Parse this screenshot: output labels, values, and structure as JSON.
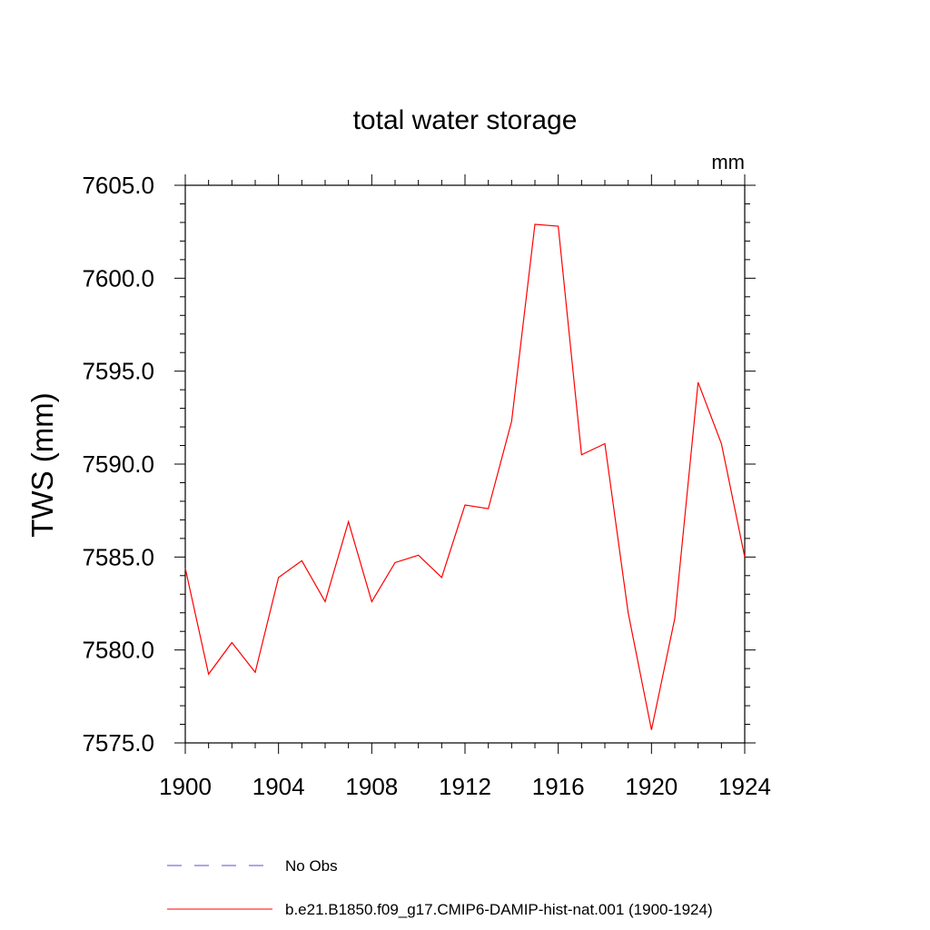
{
  "chart_data": {
    "type": "line",
    "title": "total water storage",
    "units_label": "mm",
    "ylabel": "TWS  (mm)",
    "xlabel": "",
    "xlim": [
      1900,
      1924
    ],
    "ylim": [
      7575.0,
      7605.0
    ],
    "x_ticks": [
      1900,
      1904,
      1908,
      1912,
      1916,
      1920,
      1924
    ],
    "x_tick_labels": [
      "1900",
      "1904",
      "1908",
      "1912",
      "1916",
      "1920",
      "1924"
    ],
    "y_ticks": [
      7575.0,
      7580.0,
      7585.0,
      7590.0,
      7595.0,
      7600.0,
      7605.0
    ],
    "y_tick_labels": [
      "7575.0",
      "7580.0",
      "7585.0",
      "7590.0",
      "7595.0",
      "7600.0",
      "7605.0"
    ],
    "grid": false,
    "legend_position": "bottom",
    "series": [
      {
        "name": "b.e21.B1850.f09_g17.CMIP6-DAMIP-hist-nat.001 (1900-1924)",
        "color": "#ff0000",
        "style": "solid",
        "x": [
          1900,
          1901,
          1902,
          1903,
          1904,
          1905,
          1906,
          1907,
          1908,
          1909,
          1910,
          1911,
          1912,
          1913,
          1914,
          1915,
          1916,
          1917,
          1918,
          1919,
          1920,
          1921,
          1922,
          1923,
          1924
        ],
        "y": [
          7584.4,
          7578.7,
          7580.4,
          7578.8,
          7583.9,
          7584.8,
          7582.6,
          7586.9,
          7582.6,
          7584.7,
          7585.1,
          7583.9,
          7587.8,
          7587.6,
          7592.3,
          7602.9,
          7602.8,
          7590.5,
          7591.1,
          7582.0,
          7575.7,
          7581.7,
          7594.4,
          7591.1,
          7585.0
        ]
      }
    ],
    "legend": [
      {
        "label": "No Obs",
        "color": "#5a4fcf",
        "style": "dashed"
      },
      {
        "label": "b.e21.B1850.f09_g17.CMIP6-DAMIP-hist-nat.001 (1900-1924)",
        "color": "#ff0000",
        "style": "solid"
      }
    ]
  }
}
